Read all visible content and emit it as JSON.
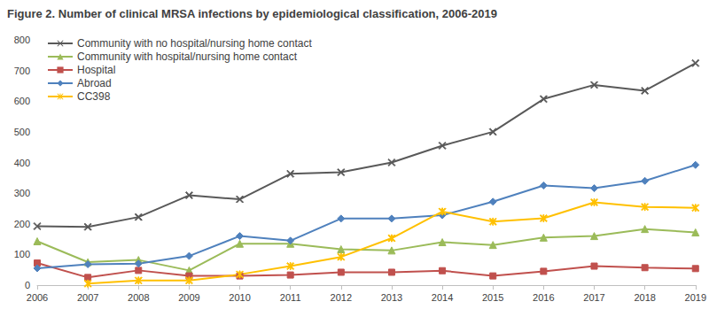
{
  "chart_data": {
    "type": "line",
    "title": "Figure 2. Number of clinical MRSA infections by epidemiological classification, 2006-2019",
    "categories": [
      "2006",
      "2007",
      "2008",
      "2009",
      "2010",
      "2011",
      "2012",
      "2013",
      "2014",
      "2015",
      "2016",
      "2017",
      "2018",
      "2019"
    ],
    "series": [
      {
        "name": "Community with no hospital/nursing home contact",
        "color": "#595959",
        "marker": "x",
        "values": [
          192,
          190,
          222,
          293,
          280,
          363,
          368,
          400,
          455,
          500,
          607,
          653,
          634,
          724
        ]
      },
      {
        "name": "Community with hospital/nursing home contact",
        "color": "#9bbb59",
        "marker": "triangle",
        "values": [
          143,
          75,
          82,
          48,
          135,
          135,
          117,
          113,
          140,
          131,
          155,
          160,
          183,
          172
        ]
      },
      {
        "name": "Hospital",
        "color": "#c0504d",
        "marker": "square",
        "values": [
          72,
          25,
          48,
          30,
          30,
          33,
          42,
          42,
          47,
          30,
          45,
          62,
          57,
          54
        ]
      },
      {
        "name": "Abroad",
        "color": "#4f81bd",
        "marker": "diamond",
        "values": [
          55,
          68,
          70,
          95,
          160,
          145,
          217,
          217,
          228,
          272,
          325,
          316,
          340,
          392
        ]
      },
      {
        "name": "CC398",
        "color": "#ffc000",
        "marker": "star",
        "values": [
          null,
          5,
          15,
          15,
          35,
          62,
          92,
          153,
          240,
          207,
          218,
          270,
          255,
          252
        ]
      }
    ],
    "ylim": [
      0,
      800
    ],
    "yticks": [
      0,
      100,
      200,
      300,
      400,
      500,
      600,
      700,
      800
    ],
    "grid": false,
    "legend": "upper left"
  }
}
